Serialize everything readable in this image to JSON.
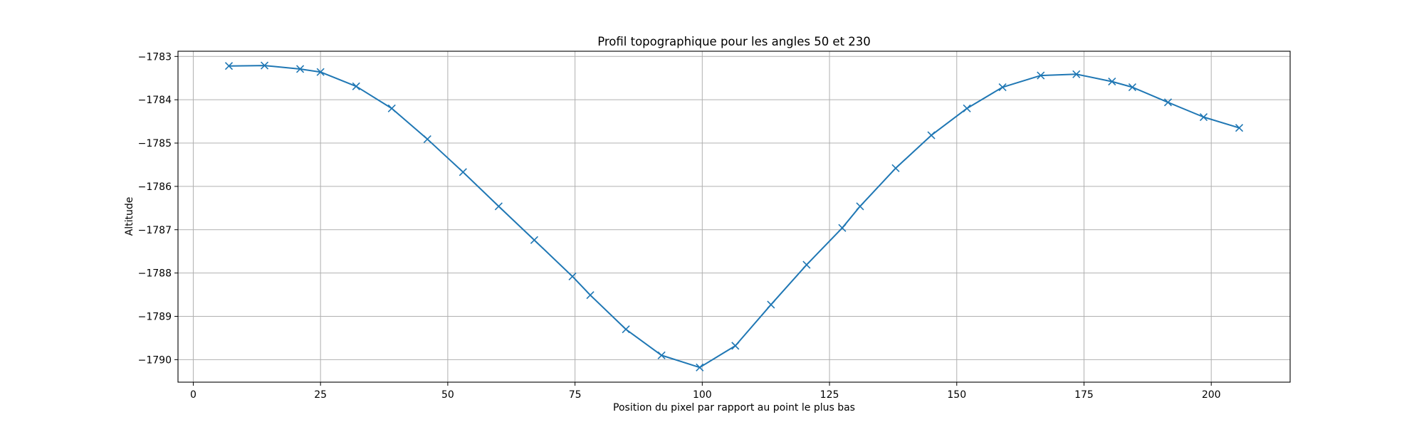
{
  "chart_data": {
    "type": "line",
    "title": "Profil topographique pour les angles 50 et 230",
    "xlabel": "Position du pixel par rapport au point le plus bas",
    "ylabel": "Altitude",
    "xlim": [
      -3,
      215.5
    ],
    "ylim": [
      -1790.52,
      -1782.88
    ],
    "xticks": [
      0,
      25,
      50,
      75,
      100,
      125,
      150,
      175,
      200
    ],
    "xtick_labels": [
      "0",
      "25",
      "50",
      "75",
      "100",
      "125",
      "150",
      "175",
      "200"
    ],
    "yticks": [
      -1783,
      -1784,
      -1785,
      -1786,
      -1787,
      -1788,
      -1789,
      -1790
    ],
    "ytick_labels": [
      "−1783",
      "−1784",
      "−1785",
      "−1786",
      "−1787",
      "−1788",
      "−1789",
      "−1790"
    ],
    "grid": true,
    "marker": "x",
    "color": "#1f77b4",
    "series": [
      {
        "x": [
          7,
          14,
          21,
          25,
          32,
          39,
          46,
          53,
          60,
          67,
          74.5,
          78,
          85,
          92,
          99.5,
          106.5,
          113.5,
          120.5,
          127.5,
          131,
          138,
          145,
          152,
          159,
          166.5,
          173.5,
          180.5,
          184.5,
          191.5,
          198.5,
          205.5
        ],
        "y": [
          -1783.22,
          -1783.21,
          -1783.29,
          -1783.36,
          -1783.69,
          -1784.2,
          -1784.91,
          -1785.67,
          -1786.46,
          -1787.24,
          -1788.08,
          -1788.51,
          -1789.3,
          -1789.9,
          -1790.18,
          -1789.68,
          -1788.73,
          -1787.81,
          -1786.96,
          -1786.46,
          -1785.58,
          -1784.82,
          -1784.2,
          -1783.71,
          -1783.44,
          -1783.41,
          -1783.58,
          -1783.71,
          -1784.06,
          -1784.4,
          -1784.65
        ]
      }
    ]
  }
}
